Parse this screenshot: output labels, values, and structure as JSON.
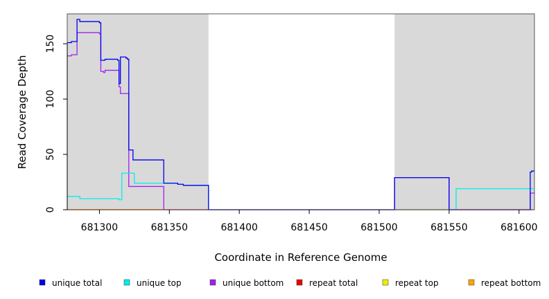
{
  "chart_data": {
    "type": "line",
    "xlabel": "Coordinate in Reference Genome",
    "ylabel": "Read Coverage Depth",
    "xlim": [
      681277,
      681611
    ],
    "ylim": [
      0,
      177
    ],
    "x_ticks": [
      681300,
      681350,
      681400,
      681450,
      681500,
      681550,
      681600
    ],
    "y_ticks": [
      0,
      50,
      100,
      150
    ],
    "shaded_regions": [
      [
        681277,
        681378
      ],
      [
        681511,
        681611
      ]
    ],
    "shade_color": "#d9d9d9",
    "legend_position": "bottom",
    "series": [
      {
        "name": "unique total",
        "color": "#0000ee",
        "step": true,
        "x": [
          681277,
          681280,
          681284,
          681286,
          681300,
          681301,
          681302,
          681304,
          681312,
          681313,
          681314,
          681315,
          681316,
          681319,
          681320,
          681321,
          681322,
          681324,
          681325,
          681346,
          681347,
          681356,
          681360,
          681378,
          681511,
          681550,
          681608,
          681609,
          681611
        ],
        "y": [
          151,
          152,
          172,
          170,
          169,
          135,
          135,
          136,
          136,
          135,
          114,
          138,
          138,
          137,
          136,
          54,
          54,
          45,
          45,
          24,
          24,
          23,
          22,
          0,
          29,
          0,
          34,
          35,
          35
        ]
      },
      {
        "name": "unique top",
        "color": "#00eeee",
        "step": true,
        "x": [
          681277,
          681281,
          681286,
          681300,
          681312,
          681314,
          681316,
          681323,
          681325,
          681346,
          681356,
          681360,
          681378,
          681511,
          681550,
          681555,
          681611
        ],
        "y": [
          12,
          12,
          10,
          10,
          10,
          9,
          33,
          33,
          24,
          24,
          23,
          22,
          0,
          0,
          0,
          19,
          19
        ]
      },
      {
        "name": "unique bottom",
        "color": "#a020f0",
        "step": true,
        "x": [
          681277,
          681280,
          681284,
          681286,
          681300,
          681301,
          681303,
          681304,
          681312,
          681313,
          681314,
          681315,
          681316,
          681321,
          681325,
          681346,
          681511,
          681550,
          681608,
          681611
        ],
        "y": [
          139,
          140,
          160,
          160,
          159,
          125,
          124,
          126,
          126,
          126,
          111,
          105,
          105,
          21,
          21,
          0,
          29,
          0,
          15,
          16
        ]
      },
      {
        "name": "repeat total",
        "color": "#ee0000",
        "step": true,
        "x": [
          681277,
          681611
        ],
        "y": [
          0,
          0
        ]
      },
      {
        "name": "repeat top",
        "color": "#eeee00",
        "step": true,
        "x": [
          681277,
          681611
        ],
        "y": [
          0,
          0
        ]
      },
      {
        "name": "repeat bottom",
        "color": "#ffa500",
        "step": true,
        "x": [
          681277,
          681346
        ],
        "y": [
          0,
          0
        ]
      }
    ]
  }
}
